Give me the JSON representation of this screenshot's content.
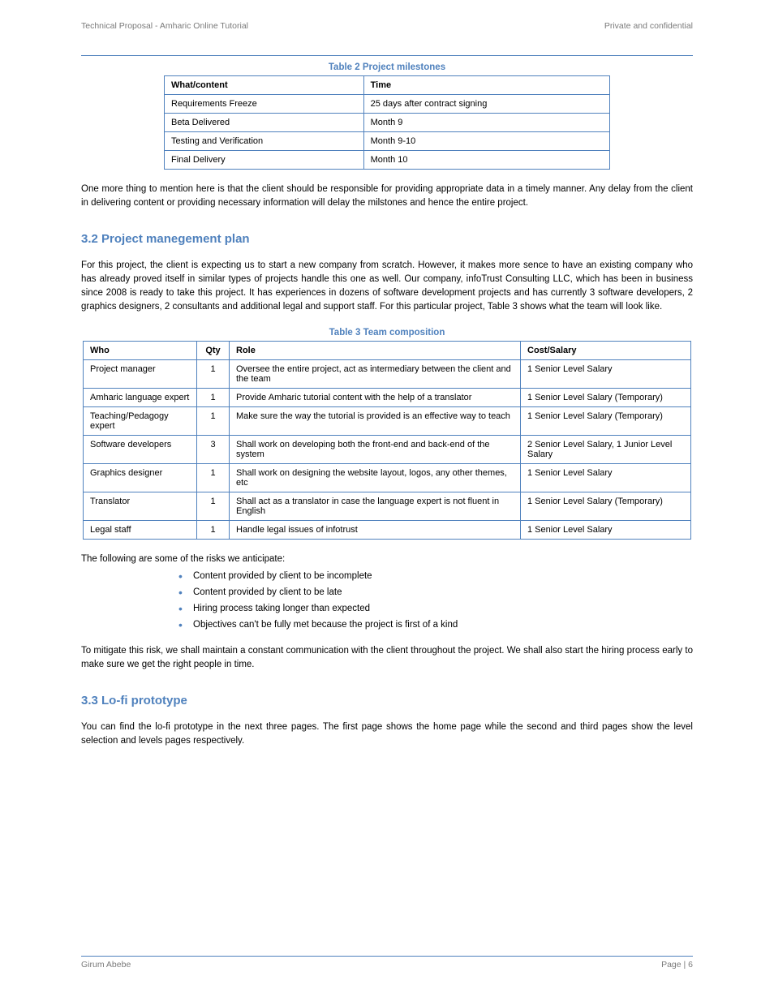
{
  "header": {
    "left": "Technical Proposal - Amharic Online Tutorial",
    "right": "Private and confidential"
  },
  "table2": {
    "caption": "Table 2 Project milestones",
    "columns": [
      "What/content",
      "Time"
    ],
    "rows": [
      [
        "Requirements Freeze",
        "25 days after contract signing"
      ],
      [
        "Beta Delivered",
        "Month 9"
      ],
      [
        "Testing and Verification",
        "Month 9-10"
      ],
      [
        "Final Delivery",
        "Month 10"
      ]
    ]
  },
  "paragraph1": "One more thing to mention here is that the client should be responsible for providing appropriate data in a timely manner. Any delay from the client in delivering content or providing necessary information will delay the milstones and hence the entire project.",
  "heading_pm": "3.2 Project manegement plan",
  "paragraph2": "For this project, the client is expecting us to start a new company from scratch. However, it makes more sence to have an existing company who has already proved itself in similar types of projects handle this one as well. Our company, infoTrust Consulting LLC, which has been in business since 2008 is ready to take this project. It has experiences in dozens of software development projects and has currently 3 software developers, 2 graphics designers, 2 consultants and additional legal and support staff. For this particular project, Table 3 shows what the team will look like.",
  "table3": {
    "caption": "Table 3 Team composition",
    "columns": [
      "Who",
      "Qty",
      "Role",
      "Cost/Salary"
    ],
    "rows": [
      [
        "Project manager",
        "1",
        "Oversee the entire project, act as intermediary between the client and the team",
        "1 Senior Level Salary"
      ],
      [
        "Amharic language expert",
        "1",
        "Provide Amharic tutorial content with the help of a translator",
        "1 Senior Level Salary (Temporary)"
      ],
      [
        "Teaching/Pedagogy expert",
        "1",
        "Make sure the way the tutorial is provided is an effective way to teach",
        "1 Senior Level Salary (Temporary)"
      ],
      [
        "Software developers",
        "3",
        "Shall work on developing both the front-end and back-end of the system",
        "2 Senior Level Salary, 1 Junior Level Salary"
      ],
      [
        "Graphics designer",
        "1",
        "Shall work on designing the website layout, logos, any other themes, etc",
        "1 Senior Level Salary"
      ],
      [
        "Translator",
        "1",
        "Shall act as a translator in case the language expert is not fluent in English",
        "1 Senior Level Salary (Temporary)"
      ],
      [
        "Legal staff",
        "1",
        "Handle legal issues of infotrust",
        "1 Senior Level Salary"
      ]
    ]
  },
  "risks_intro": "The following are some of the risks we anticipate:",
  "risks": [
    "Content provided by client to be incomplete",
    "Content provided by client to be late",
    "Hiring process taking longer than expected",
    "Objectives can't be fully met because the project is first of a kind"
  ],
  "paragraph3": "To mitigate this risk, we shall maintain a constant communication with the client throughout the project. We shall also start the hiring process early to make sure we get the right people in time.",
  "heading_proto": "3.3 Lo-fi prototype",
  "paragraph4": "You can find the lo-fi prototype in the next three pages. The first page shows the home page while the second and third pages show the level selection and levels pages respectively.",
  "footer": {
    "left": "Girum Abebe",
    "right": "Page | 6"
  }
}
